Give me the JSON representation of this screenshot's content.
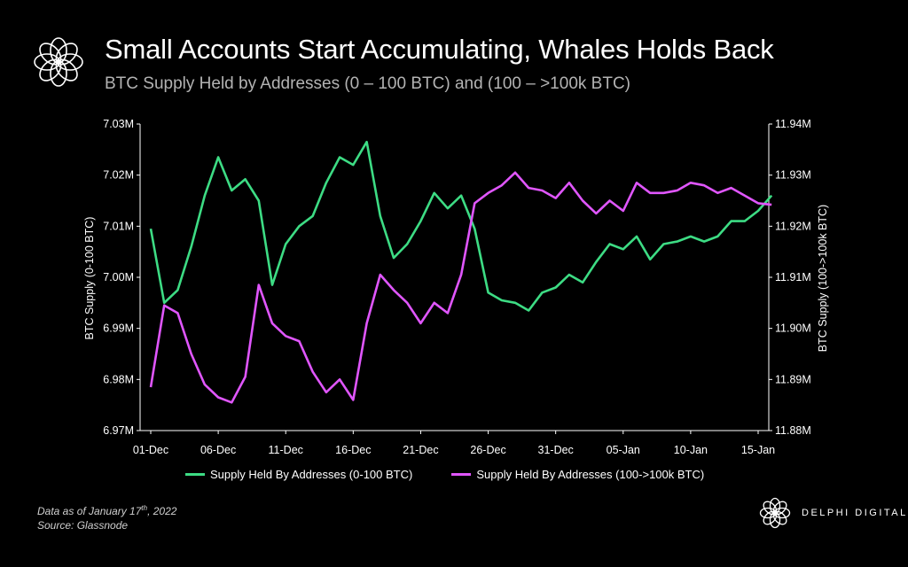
{
  "header": {
    "title": "Small Accounts Start Accumulating, Whales Holds Back",
    "subtitle": "BTC Supply Held by Addresses (0 – 100 BTC) and (100 – >100k BTC)"
  },
  "footer": {
    "date_note_prefix": "Data as of January 17",
    "date_note_sup": "th",
    "date_note_suffix": ", 2022",
    "source": "Source: Glassnode",
    "brand": "DELPHI DIGITAL"
  },
  "colors": {
    "green": "#3ddc84",
    "magenta": "#e056fd",
    "grid": "#ffffff",
    "background": "#000000"
  },
  "icons": {
    "logo": "flower-ring-logo-icon",
    "brand_logo": "flower-ring-logo-icon"
  },
  "chart_data": {
    "type": "line",
    "grid": false,
    "legend_position": "bottom",
    "x_tick_labels": [
      "01-Dec",
      "06-Dec",
      "11-Dec",
      "16-Dec",
      "21-Dec",
      "26-Dec",
      "31-Dec",
      "05-Jan",
      "10-Jan",
      "15-Jan"
    ],
    "x": [
      "2021-12-01",
      "2021-12-02",
      "2021-12-03",
      "2021-12-04",
      "2021-12-05",
      "2021-12-06",
      "2021-12-07",
      "2021-12-08",
      "2021-12-09",
      "2021-12-10",
      "2021-12-11",
      "2021-12-12",
      "2021-12-13",
      "2021-12-14",
      "2021-12-15",
      "2021-12-16",
      "2021-12-17",
      "2021-12-18",
      "2021-12-19",
      "2021-12-20",
      "2021-12-21",
      "2021-12-22",
      "2021-12-23",
      "2021-12-24",
      "2021-12-25",
      "2021-12-26",
      "2021-12-27",
      "2021-12-28",
      "2021-12-29",
      "2021-12-30",
      "2021-12-31",
      "2022-01-01",
      "2022-01-02",
      "2022-01-03",
      "2022-01-04",
      "2022-01-05",
      "2022-01-06",
      "2022-01-07",
      "2022-01-08",
      "2022-01-09",
      "2022-01-10",
      "2022-01-11",
      "2022-01-12",
      "2022-01-13",
      "2022-01-14",
      "2022-01-15",
      "2022-01-16"
    ],
    "y_left": {
      "label": "BTC Supply (0-100 BTC)",
      "ylim": [
        6970000,
        7030000
      ],
      "tick_labels": [
        "6.97M",
        "6.98M",
        "6.99M",
        "7.00M",
        "7.01M",
        "7.02M",
        "7.03M"
      ]
    },
    "y_right": {
      "label": "BTC Supply (100->100k BTC)",
      "ylim": [
        11880000,
        11940000
      ],
      "tick_labels": [
        "11.88M",
        "11.89M",
        "11.90M",
        "11.91M",
        "11.92M",
        "11.93M",
        "11.94M"
      ]
    },
    "series": [
      {
        "name": "Supply Held By Addresses (0-100 BTC)",
        "axis": "left",
        "color": "#3ddc84",
        "values": [
          7009500,
          6995000,
          6997500,
          7006000,
          7016000,
          7023500,
          7017000,
          7019200,
          7015000,
          6998500,
          7006500,
          7010000,
          7012000,
          7018500,
          7023500,
          7022000,
          7026500,
          7012000,
          7003800,
          7006500,
          7011000,
          7016500,
          7013500,
          7016000,
          7009500,
          6997000,
          6995500,
          6995000,
          6993500,
          6997000,
          6998000,
          7000500,
          6999000,
          7003000,
          7006500,
          7005500,
          7008000,
          7003500,
          7006500,
          7007000,
          7008000,
          7007000,
          7008000,
          7011000,
          7011000,
          7013000,
          7016000
        ]
      },
      {
        "name": "Supply Held By Addresses (100->100k BTC)",
        "axis": "right",
        "color": "#e056fd",
        "values": [
          11888500,
          11904500,
          11903000,
          11895000,
          11889000,
          11886500,
          11885500,
          11890500,
          11908500,
          11901000,
          11898500,
          11897500,
          11891500,
          11887500,
          11890000,
          11886000,
          11901000,
          11910500,
          11907500,
          11905000,
          11901000,
          11905000,
          11903000,
          11910500,
          11924500,
          11926500,
          11928000,
          11930500,
          11927500,
          11927000,
          11925500,
          11928500,
          11925000,
          11922500,
          11925000,
          11923000,
          11928500,
          11926500,
          11926500,
          11927000,
          11928500,
          11928000,
          11926500,
          11927500,
          11926000,
          11924500,
          11924200
        ]
      }
    ]
  }
}
